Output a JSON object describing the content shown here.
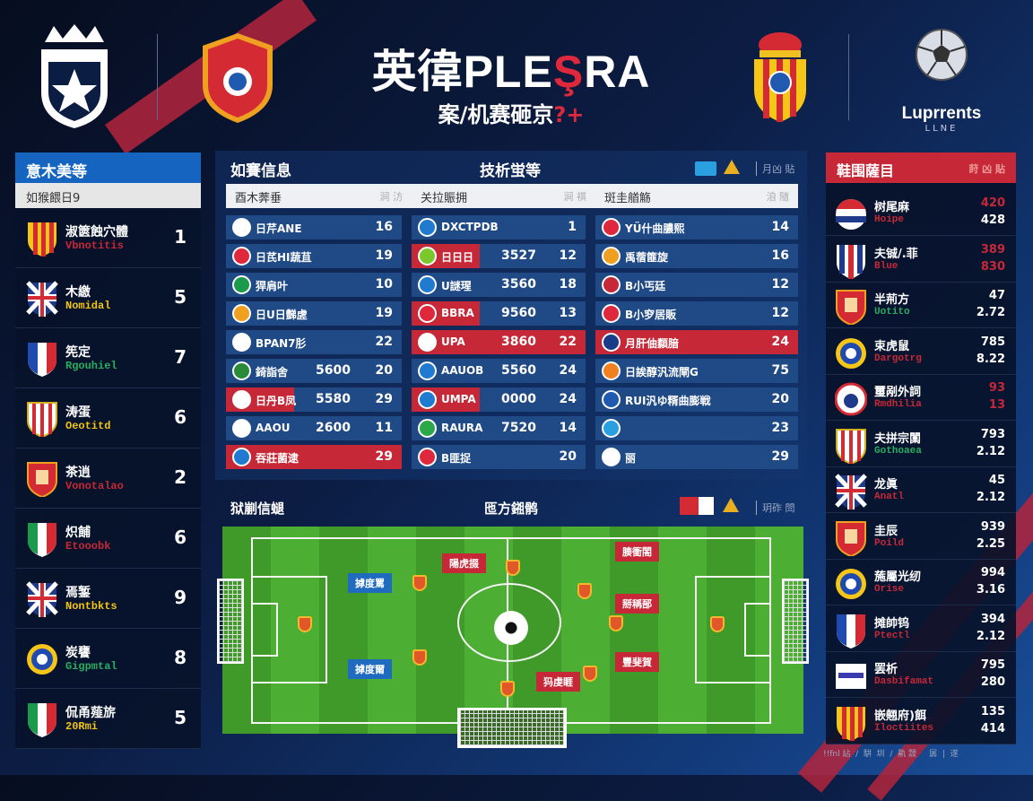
{
  "colors": {
    "brand_blue": "#1565c0",
    "accent_red": "#c62838",
    "row_blue": "#1f4a86",
    "panel_dark": "#08122a",
    "yellow": "#f1c40f",
    "green": "#27ae60"
  },
  "header": {
    "title_left": "英徫PLE",
    "title_accent": "Ş",
    "title_right": "RA",
    "subtitle": "案/机赛砸京",
    "subtitle_accent": "?+",
    "logos": [
      "crown-star-badge",
      "red-shield-crest",
      "spanish-crest",
      "ball-league-logo"
    ],
    "league_logo_text": "Luprrents",
    "league_logo_sub": "LLNE"
  },
  "left_panel": {
    "title": "意木美等",
    "subtitle": "如猴餵日9",
    "rows": [
      {
        "name": "淑篋蝕穴體",
        "sub": "Vbnotitis",
        "sub_color": "#c62838",
        "num": "1",
        "crest": "spain"
      },
      {
        "name": "木繳",
        "sub": "Nomidal",
        "sub_color": "#f1c40f",
        "num": "5",
        "crest": "uk"
      },
      {
        "name": "筅定",
        "sub": "Rgouhiel",
        "sub_color": "#27ae60",
        "num": "7",
        "crest": "france"
      },
      {
        "name": "涛蛋",
        "sub": "Oeotitd",
        "sub_color": "#f1c40f",
        "num": "6",
        "crest": "stripes"
      },
      {
        "name": "茶逍",
        "sub": "Vonotalao",
        "sub_color": "#c62838",
        "num": "2",
        "crest": "redshield"
      },
      {
        "name": "炽餔",
        "sub": "Etooobk",
        "sub_color": "#c62838",
        "num": "6",
        "crest": "italy"
      },
      {
        "name": "焉錾",
        "sub": "Nontbkts",
        "sub_color": "#f1c40f",
        "num": "9",
        "crest": "uk"
      },
      {
        "name": "炭饔",
        "sub": "Gigpmtal",
        "sub_color": "#27ae60",
        "num": "8",
        "crest": "gold"
      },
      {
        "name": "侃甬薤旂",
        "sub": "20Rmi",
        "sub_color": "#f1c40f",
        "num": "5",
        "crest": "italy"
      }
    ]
  },
  "center": {
    "title_left": "如賽信息",
    "title_mid": "技析蛍等",
    "right_label": "月凶 貼",
    "columns": [
      {
        "header": "酉木莾垂",
        "header_right": "涧 汸",
        "rows": [
          {
            "name": "日芹ANE",
            "mid": "",
            "val": "16",
            "icon": "#ffffff"
          },
          {
            "name": "日芪HI蔬苴",
            "mid": "",
            "val": "19",
            "icon": "#e0283c"
          },
          {
            "name": "猂肩叶",
            "mid": "",
            "val": "10",
            "icon": "#1a9a4a"
          },
          {
            "name": "日U日豑虗",
            "mid": "",
            "val": "19",
            "icon": "#f0a020"
          },
          {
            "name": "BPAN7肜",
            "mid": "",
            "val": "22",
            "icon": "#ffffff"
          },
          {
            "name": "錡詣舍",
            "mid": "5600",
            "val": "20",
            "icon": "#2a8a3a"
          },
          {
            "name": "日丹B凤",
            "mid": "5580",
            "val": "29",
            "icon": "#ffffff",
            "tag": true
          },
          {
            "name": "AAOU",
            "mid": "2600",
            "val": "11",
            "icon": "#ffffff"
          },
          {
            "name": "吞莊菌逮",
            "mid": "",
            "val": "29",
            "icon": "#1f7ad0",
            "hl": true
          }
        ]
      },
      {
        "header": "关拉賑拥",
        "header_right": "涧 祺",
        "rows": [
          {
            "name": "DXCTPDB",
            "mid": "",
            "val": "1",
            "icon": "#1f7ad0"
          },
          {
            "name": "日日日",
            "mid": "3527",
            "val": "12",
            "icon": "#7ac82a",
            "tag": true
          },
          {
            "name": "U謎瑆",
            "mid": "3560",
            "val": "18",
            "icon": "#1f7ad0"
          },
          {
            "name": "BBRA",
            "mid": "9560",
            "val": "13",
            "icon": "#e0283c",
            "tag": true
          },
          {
            "name": "UPA",
            "mid": "3860",
            "val": "22",
            "icon": "#ffffff",
            "hl": true
          },
          {
            "name": "AAUOB",
            "mid": "5560",
            "val": "24",
            "icon": "#1f7ad0"
          },
          {
            "name": "UMPA",
            "mid": "0000",
            "val": "24",
            "icon": "#1f7ad0",
            "tag": true
          },
          {
            "name": "RAURA",
            "mid": "7520",
            "val": "14",
            "icon": "#2aa84a"
          },
          {
            "name": "B匪捉",
            "mid": "",
            "val": "20",
            "icon": "#e0283c"
          }
        ]
      },
      {
        "header": "斑圭艏觞",
        "header_right": "洎 隨",
        "rows": [
          {
            "name": "YÜ什曲膿熙",
            "mid": "",
            "val": "14",
            "icon": "#e0283c"
          },
          {
            "name": "禹蓿篚旋",
            "mid": "",
            "val": "16",
            "icon": "#f0a020"
          },
          {
            "name": "B小丐廷",
            "mid": "",
            "val": "12",
            "icon": "#c62838"
          },
          {
            "name": "B小穸居販",
            "mid": "",
            "val": "12",
            "icon": "#e0283c"
          },
          {
            "name": "月肝伷纇腤",
            "mid": "",
            "val": "24",
            "icon": "#1a3a8a",
            "hl": true
          },
          {
            "name": "日誒醇汎流閘G",
            "mid": "",
            "val": "75",
            "icon": "#f08020"
          },
          {
            "name": "RUI汎ゆ糈曲膨戦",
            "mid": "",
            "val": "20",
            "icon": "#1f5ab0"
          },
          {
            "name": "",
            "mid": "",
            "val": "23",
            "icon": "#2aa0e0"
          },
          {
            "name": "丽",
            "mid": "",
            "val": "29",
            "icon": "#ffffff"
          }
        ]
      }
    ]
  },
  "pitch": {
    "title_left": "狱剻信螁",
    "title_mid": "匜方鎺鹘",
    "right_label": "玥砟 閚",
    "labels": [
      {
        "text": "摢度罵",
        "color": "blue"
      },
      {
        "text": "摢度爾",
        "color": "blue"
      },
      {
        "text": "陽虎掇",
        "color": "red"
      },
      {
        "text": "腠衝閤",
        "color": "red"
      },
      {
        "text": "掰稱郚",
        "color": "red"
      },
      {
        "text": "豐斐賀",
        "color": "red"
      },
      {
        "text": "犸虔睚",
        "color": "red"
      }
    ]
  },
  "right_panel": {
    "title": "鞋围薩目",
    "header_right": "莳 凶 貼",
    "rows": [
      {
        "name": "树尾麻",
        "sub": "Hoipe",
        "sub_color": "#c62838",
        "v1": "420",
        "v1_color": "#c62838",
        "v2": "428",
        "v2_color": "#ffffff",
        "crest": "tricolor"
      },
      {
        "name": "夫铖/.菲",
        "sub": "Blue",
        "sub_color": "#c62838",
        "v1": "389",
        "v1_color": "#c62838",
        "v2": "830",
        "v2_color": "#c62838",
        "crest": "bluered"
      },
      {
        "name": "半荊方",
        "sub": "Uotito",
        "sub_color": "#27ae60",
        "v1": "47",
        "v1_color": "#ffffff",
        "v2": "2.72",
        "v2_color": "#ffffff",
        "crest": "redshield"
      },
      {
        "name": "束虎鼠",
        "sub": "Dargotrg",
        "sub_color": "#c62838",
        "v1": "785",
        "v1_color": "#ffffff",
        "v2": "8.22",
        "v2_color": "#ffffff",
        "crest": "gold"
      },
      {
        "name": "璽剐外詞",
        "sub": "Rmdhilia",
        "sub_color": "#c62838",
        "v1": "93",
        "v1_color": "#c62838",
        "v2": "13",
        "v2_color": "#c62838",
        "crest": "round-red"
      },
      {
        "name": "夫拼宗闑",
        "sub": "Gothoaea",
        "sub_color": "#27ae60",
        "v1": "793",
        "v1_color": "#ffffff",
        "v2": "2.12",
        "v2_color": "#ffffff",
        "crest": "stripes"
      },
      {
        "name": "龙眞",
        "sub": "Anatl",
        "sub_color": "#c62838",
        "v1": "45",
        "v1_color": "#ffffff",
        "v2": "2.12",
        "v2_color": "#ffffff",
        "crest": "uk"
      },
      {
        "name": "圭辰",
        "sub": "Poild",
        "sub_color": "#c62838",
        "v1": "939",
        "v1_color": "#ffffff",
        "v2": "2.25",
        "v2_color": "#ffffff",
        "crest": "redshield"
      },
      {
        "name": "葹屬光纫",
        "sub": "Orise",
        "sub_color": "#c62838",
        "v1": "994",
        "v1_color": "#ffffff",
        "v2": "3.16",
        "v2_color": "#ffffff",
        "crest": "gold"
      },
      {
        "name": "摊帥钨",
        "sub": "Ptectl",
        "sub_color": "#c62838",
        "v1": "394",
        "v1_color": "#ffffff",
        "v2": "2.12",
        "v2_color": "#ffffff",
        "crest": "france"
      },
      {
        "name": "罢析",
        "sub": "Dasbifamat",
        "sub_color": "#c62838",
        "v1": "795",
        "v1_color": "#ffffff",
        "v2": "280",
        "v2_color": "#ffffff",
        "crest": "banner"
      },
      {
        "name": "嵌翹府)餌",
        "sub": "Iloctiites",
        "sub_color": "#c62838",
        "v1": "135",
        "v1_color": "#ffffff",
        "v2": "414",
        "v2_color": "#ffffff",
        "crest": "spain"
      }
    ]
  },
  "footer": {
    "text": "!!fnl 詀  /  騈  圳  /  鼽 靉     孱  |  遂"
  }
}
